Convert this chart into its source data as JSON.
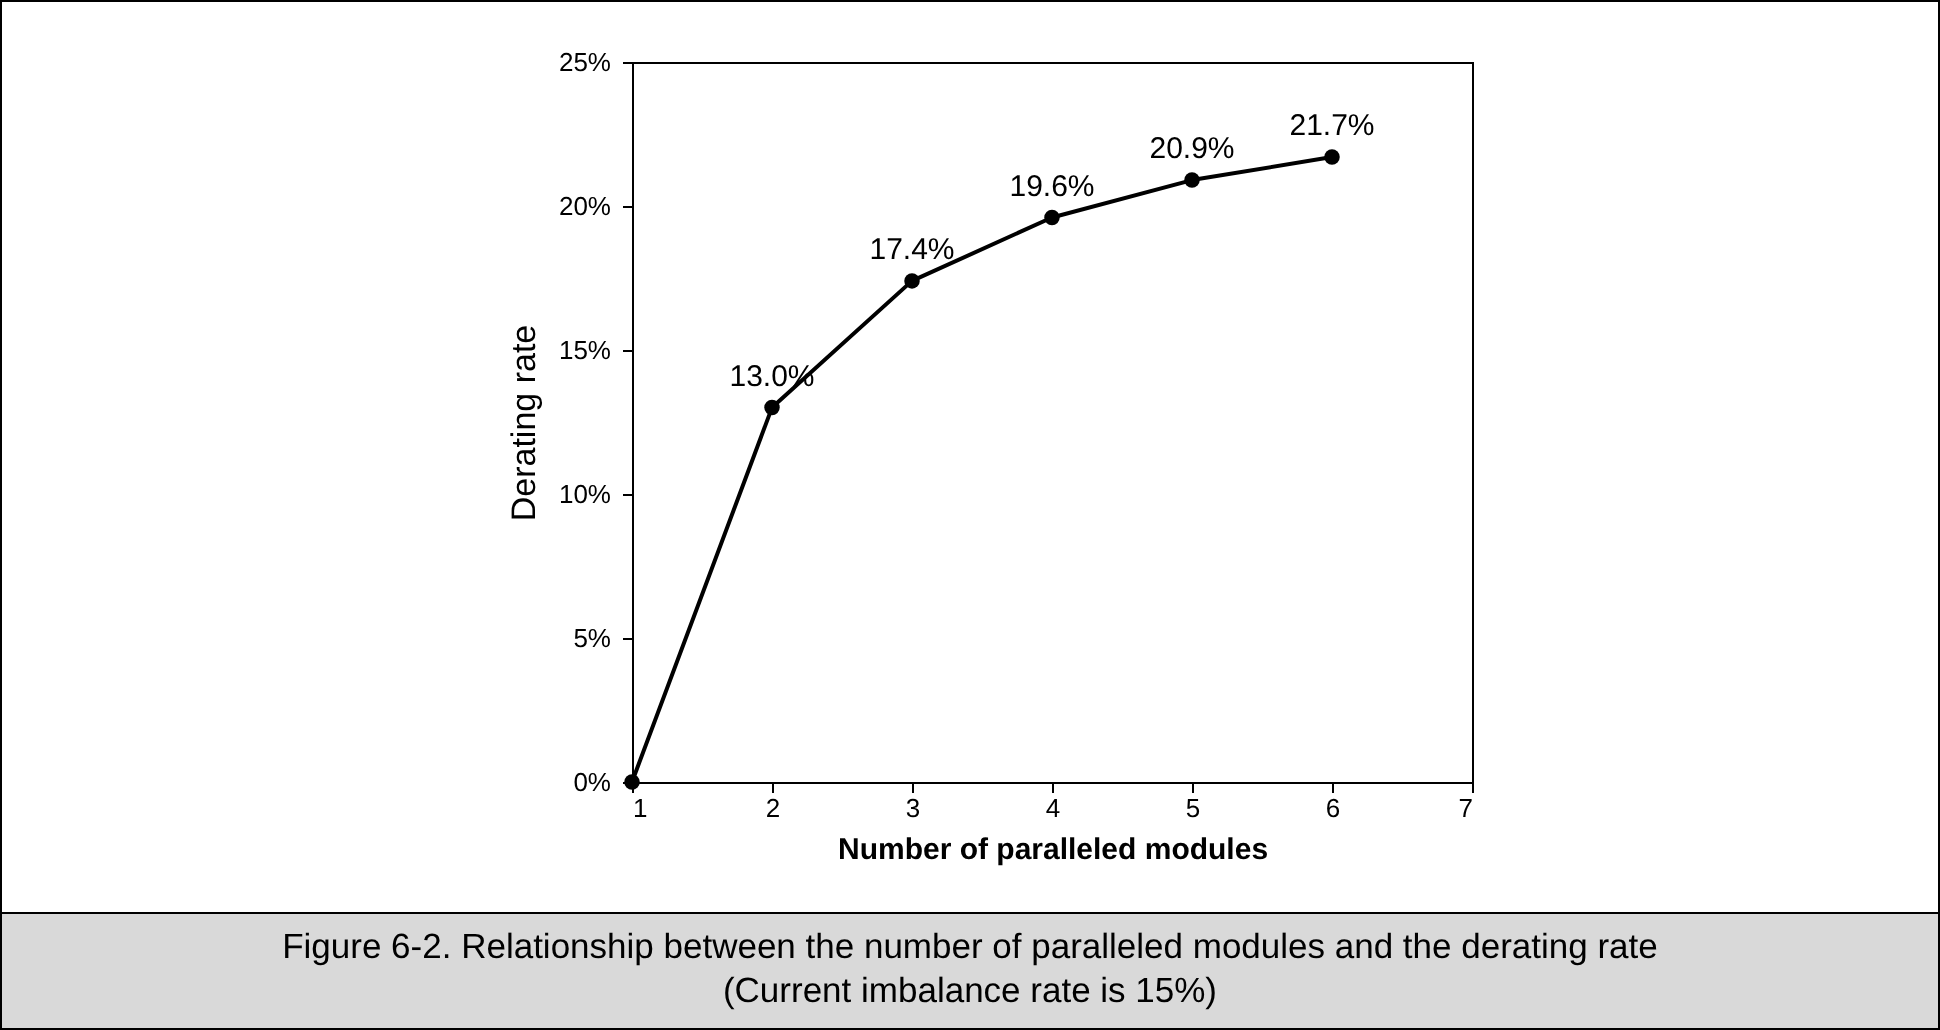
{
  "chart_data": {
    "type": "line",
    "title": "Figure 6-2. Relationship between the number of paralleled modules and the derating rate",
    "subtitle": "(Current imbalance rate is 15%)",
    "xlabel": "Number of paralleled modules",
    "ylabel": "Derating rate",
    "x": [
      1,
      2,
      3,
      4,
      5,
      6
    ],
    "series": [
      {
        "color": "#000000",
        "values": [
          0,
          13.0,
          17.4,
          19.6,
          20.9,
          21.7
        ],
        "value_labels": [
          null,
          "13.0%",
          "17.4%",
          "19.6%",
          "20.9%",
          "21.7%"
        ]
      }
    ],
    "xlim": [
      1,
      7
    ],
    "xticks": [
      1,
      2,
      3,
      4,
      5,
      6,
      7
    ],
    "ylim": [
      0,
      25
    ],
    "yticks": [
      {
        "value": 0,
        "label": "0%"
      },
      {
        "value": 5,
        "label": "5%"
      },
      {
        "value": 10,
        "label": "10%"
      },
      {
        "value": 15,
        "label": "15%"
      },
      {
        "value": 20,
        "label": "20%"
      },
      {
        "value": 25,
        "label": "25%"
      }
    ],
    "grid": false,
    "marker": "circle",
    "line_style": "solid"
  }
}
